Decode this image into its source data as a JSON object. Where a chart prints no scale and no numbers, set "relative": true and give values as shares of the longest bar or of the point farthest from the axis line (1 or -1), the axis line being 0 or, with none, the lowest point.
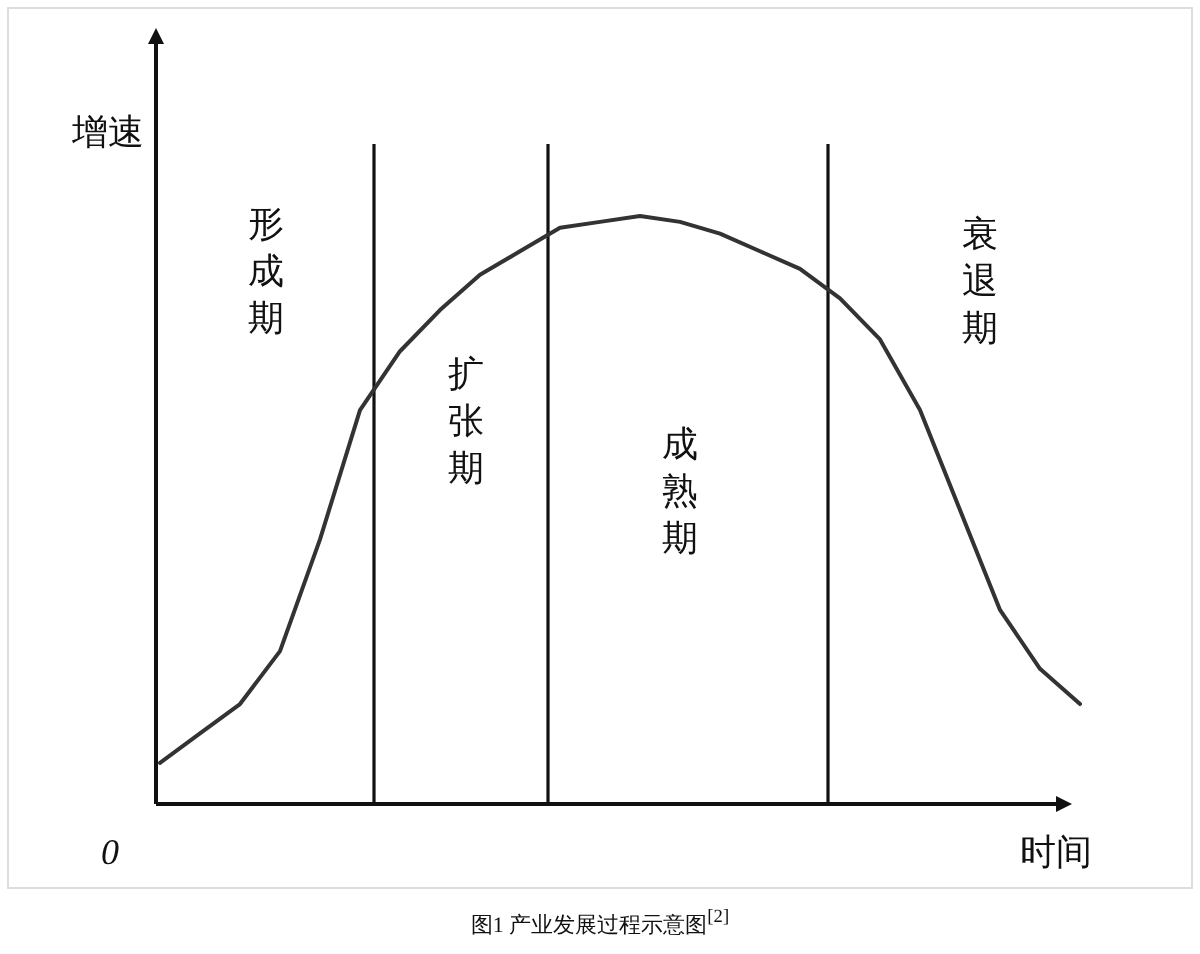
{
  "chart_data": {
    "type": "line",
    "relative": true,
    "categories": [
      null,
      null,
      null,
      null,
      null,
      null,
      null,
      null,
      null,
      null,
      null,
      null,
      null,
      null,
      null,
      null,
      null,
      null,
      null,
      null,
      null,
      null,
      null,
      null
    ],
    "series": [
      {
        "color": "#333333",
        "values": [
          0.07,
          0.12,
          0.17,
          0.26,
          0.45,
          0.67,
          0.77,
          0.84,
          0.9,
          0.94,
          0.98,
          0.99,
          1.0,
          0.99,
          0.97,
          0.94,
          0.91,
          0.86,
          0.79,
          0.67,
          0.5,
          0.33,
          0.23,
          0.17
        ]
      }
    ],
    "ylabel": "增速",
    "xlabel": "时间",
    "annotations": [
      "形成期",
      "扩张期",
      "成熟期",
      "衰退期",
      "0",
      "图1 产业发展过程示意图$^{[2]}$"
    ]
  }
}
